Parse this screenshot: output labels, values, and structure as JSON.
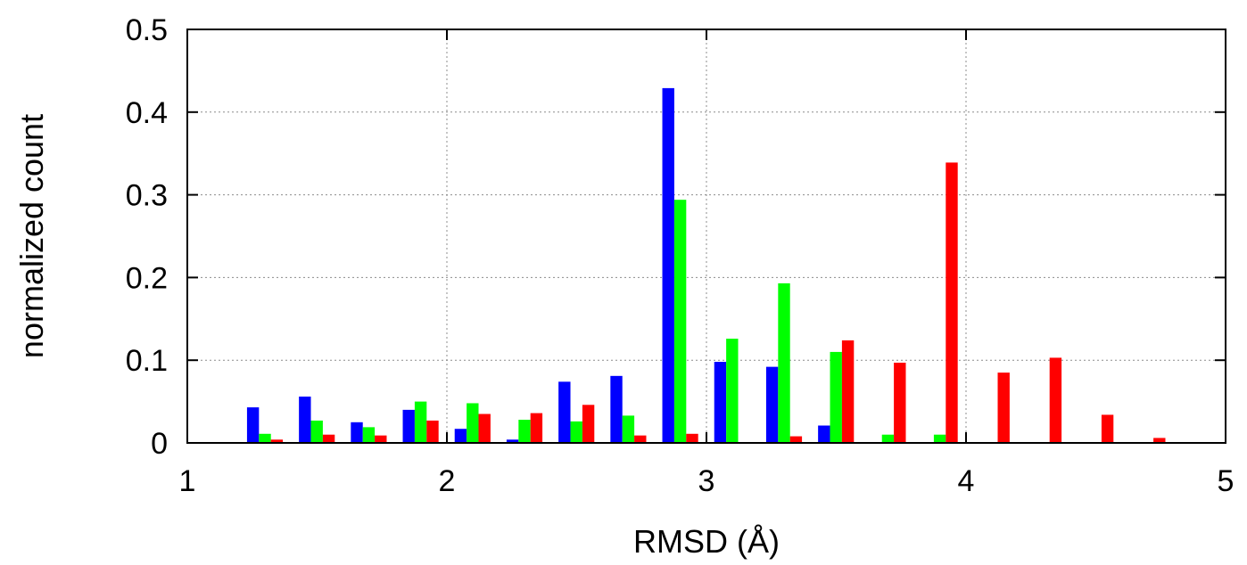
{
  "chart_data": {
    "type": "bar",
    "title": "",
    "xlabel": "RMSD (Å)",
    "ylabel": "normalized count",
    "xlim": [
      1,
      5
    ],
    "ylim": [
      0,
      0.5
    ],
    "x_ticks": [
      "1",
      "2",
      "3",
      "4",
      "5"
    ],
    "y_ticks": [
      "0",
      "0.1",
      "0.2",
      "0.3",
      "0.4",
      "0.5"
    ],
    "grid": true,
    "legend": "none",
    "bin_start": 1.0,
    "bin_width": 0.2,
    "series": [
      {
        "color": "#0000ff",
        "values": [
          0.0,
          0.043,
          0.056,
          0.025,
          0.04,
          0.017,
          0.004,
          0.074,
          0.081,
          0.429,
          0.098,
          0.092,
          0.021,
          0.0,
          0.0,
          0.0,
          0.0,
          0.0,
          0.0,
          0.0
        ]
      },
      {
        "color": "#00ff00",
        "values": [
          0.001,
          0.011,
          0.027,
          0.019,
          0.05,
          0.048,
          0.028,
          0.026,
          0.033,
          0.294,
          0.126,
          0.193,
          0.11,
          0.01,
          0.01,
          0.0,
          0.0,
          0.0,
          0.0,
          0.0
        ]
      },
      {
        "color": "#ff0000",
        "values": [
          0.0,
          0.004,
          0.01,
          0.009,
          0.027,
          0.035,
          0.036,
          0.046,
          0.009,
          0.011,
          0.001,
          0.008,
          0.124,
          0.097,
          0.339,
          0.085,
          0.103,
          0.034,
          0.006,
          0.0
        ]
      }
    ]
  }
}
